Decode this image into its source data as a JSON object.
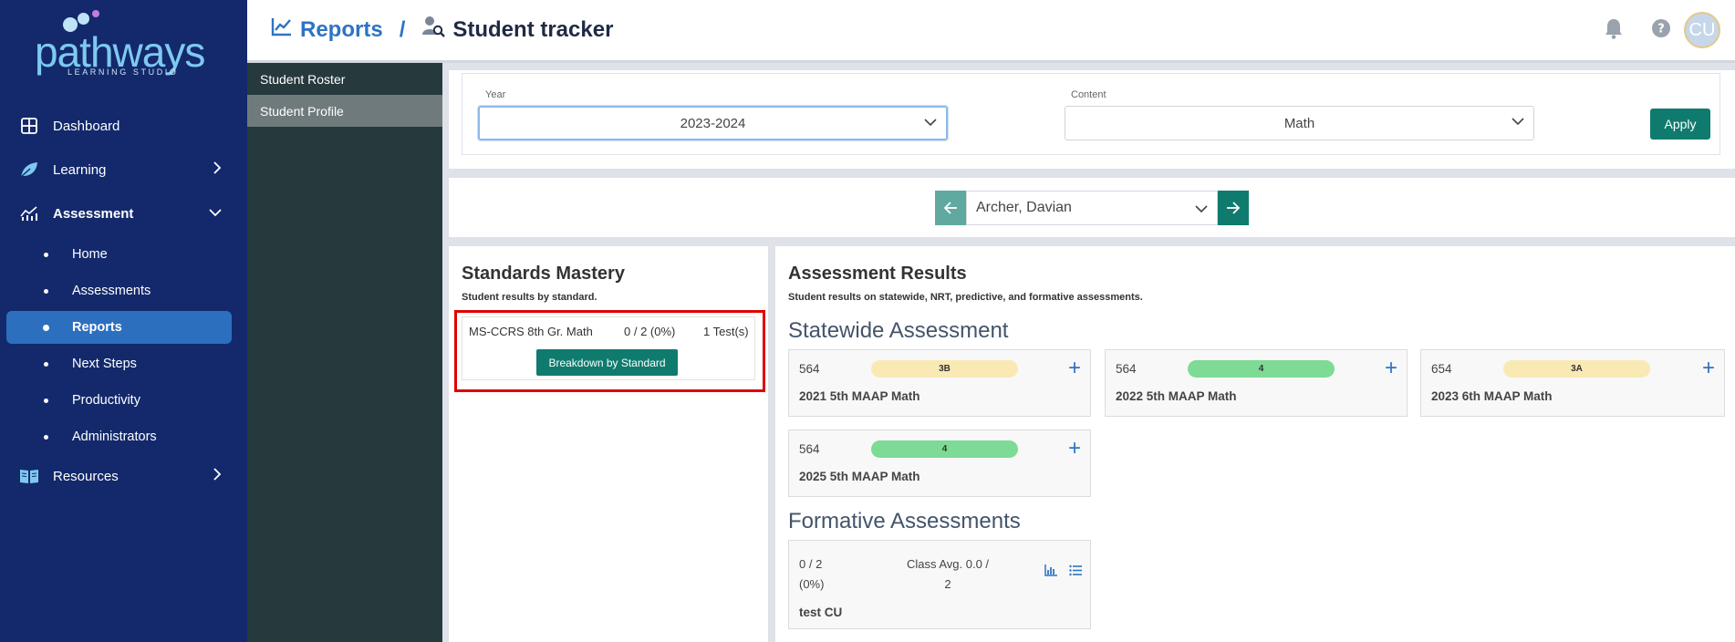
{
  "brand": {
    "name": "pathways",
    "tagline": "LEARNING STUDIO"
  },
  "nav": {
    "items": [
      {
        "label": "Dashboard"
      },
      {
        "label": "Learning"
      },
      {
        "label": "Assessment"
      },
      {
        "label": "Resources"
      }
    ],
    "assessment_sub": [
      {
        "label": "Home"
      },
      {
        "label": "Assessments"
      },
      {
        "label": "Reports"
      },
      {
        "label": "Next Steps"
      },
      {
        "label": "Productivity"
      },
      {
        "label": "Administrators"
      }
    ]
  },
  "subnav": [
    {
      "label": "Student Roster"
    },
    {
      "label": "Student Profile"
    }
  ],
  "header": {
    "crumb1": "Reports",
    "separator": "/",
    "crumb2": "Student tracker",
    "avatar": "CU"
  },
  "filters": {
    "year_label": "Year",
    "year_value": "2023-2024",
    "content_label": "Content",
    "content_value": "Math",
    "apply": "Apply"
  },
  "student": {
    "name": "Archer, Davian"
  },
  "standards": {
    "title": "Standards Mastery",
    "subtitle": "Student results by standard.",
    "rows": [
      {
        "name": "MS-CCRS 8th Gr. Math",
        "score": "0 / 2 (0%)",
        "tests": "1 Test(s)"
      }
    ],
    "button": "Breakdown by Standard"
  },
  "results": {
    "title": "Assessment Results",
    "subtitle": "Student results on statewide, NRT, predictive, and formative assessments.",
    "statewide_heading": "Statewide Assessment",
    "statewide": [
      {
        "score": "564",
        "level": "3B",
        "name": "2021 5th MAAP Math",
        "color": "#f9e9b4"
      },
      {
        "score": "564",
        "level": "4",
        "name": "2022 5th MAAP Math",
        "color": "#7ddb95"
      },
      {
        "score": "654",
        "level": "3A",
        "name": "2023 6th MAAP Math",
        "color": "#f9e9b4"
      },
      {
        "score": "564",
        "level": "4",
        "name": "2025 5th MAAP Math",
        "color": "#7ddb95"
      }
    ],
    "formative_heading": "Formative Assessments",
    "formative": [
      {
        "score_line1": "0 / 2",
        "score_line2": "(0%)",
        "avg_line1": "Class Avg. 0.0 /",
        "avg_line2": "2",
        "name": "test CU"
      }
    ]
  },
  "colors": {
    "nav_bg": "#13296b",
    "active": "#2d6fbf",
    "teal": "#0f7b6e",
    "link_blue": "#2e73c4"
  }
}
